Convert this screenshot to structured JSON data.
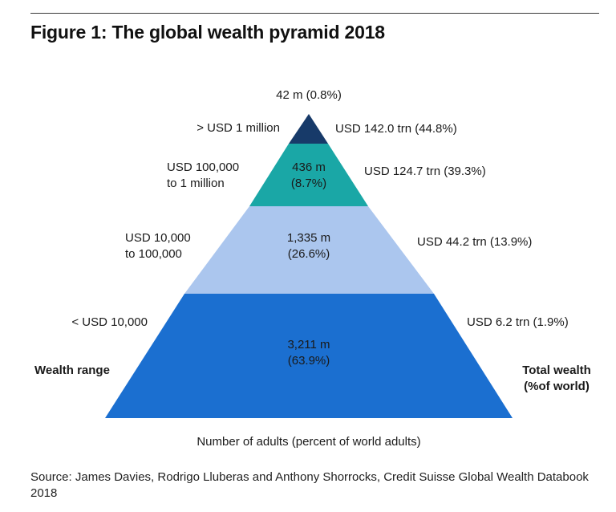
{
  "title": "Figure 1: The global wealth pyramid 2018",
  "chart_data": {
    "type": "pyramid",
    "title": "Figure 1: The global wealth pyramid 2018",
    "left_axis_label": "Wealth range",
    "right_axis_label": "Total wealth\n(%of world)",
    "bottom_label": "Number of adults (percent of world adults)",
    "tiers": [
      {
        "wealth_range": "< USD 10,000",
        "adults": "3,211 m\n(63.9%)",
        "adults_millions": 3211,
        "adults_pct": 63.9,
        "total_wealth": "USD 6.2 trn (1.9%)",
        "wealth_trn": 6.2,
        "wealth_pct": 1.9,
        "color": "#1b6fd0"
      },
      {
        "wealth_range": "USD 10,000\nto 100,000",
        "adults": "1,335 m\n(26.6%)",
        "adults_millions": 1335,
        "adults_pct": 26.6,
        "total_wealth": "USD 44.2 trn (13.9%)",
        "wealth_trn": 44.2,
        "wealth_pct": 13.9,
        "color": "#abc6ee"
      },
      {
        "wealth_range": "USD 100,000\nto 1 million",
        "adults": "436 m\n(8.7%)",
        "adults_millions": 436,
        "adults_pct": 8.7,
        "total_wealth": "USD 124.7 trn (39.3%)",
        "wealth_trn": 124.7,
        "wealth_pct": 39.3,
        "color": "#1aa7a6"
      },
      {
        "wealth_range": "> USD 1 million",
        "adults": "42 m (0.8%)",
        "adults_millions": 42,
        "adults_pct": 0.8,
        "total_wealth": "USD 142.0 trn (44.8%)",
        "wealth_trn": 142.0,
        "wealth_pct": 44.8,
        "color": "#173a69"
      }
    ]
  },
  "source": "Source: James Davies, Rodrigo Lluberas and Anthony Shorrocks, Credit Suisse Global Wealth Databook 2018"
}
